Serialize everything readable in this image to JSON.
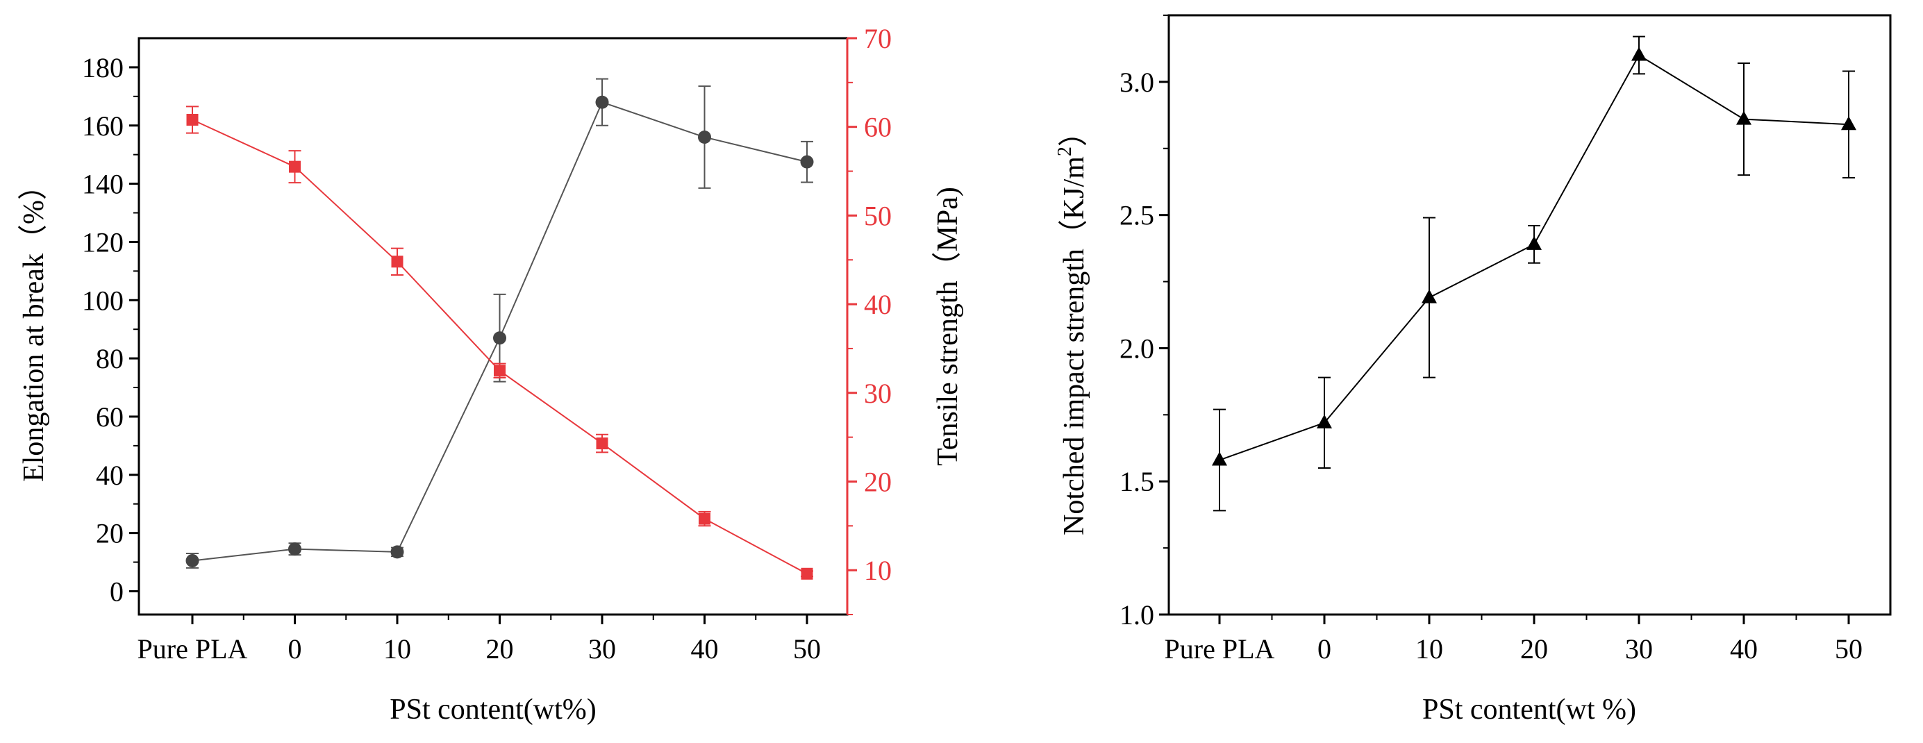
{
  "chart_data": [
    {
      "type": "line",
      "categories": [
        "Pure PLA",
        "0",
        "10",
        "20",
        "30",
        "40",
        "50"
      ],
      "xlabel": "PSt content(wt%)",
      "ylabel_left": "Elongation at break（%）",
      "ylabel_right": "Tensile strength（MPa)",
      "ylim_left": [
        -8,
        190
      ],
      "ylim_right": [
        5,
        70
      ],
      "yticks_left": [
        "0",
        "20",
        "40",
        "60",
        "80",
        "100",
        "120",
        "140",
        "160",
        "180"
      ],
      "yticks_right": [
        "10",
        "20",
        "30",
        "40",
        "50",
        "60",
        "70"
      ],
      "series": [
        {
          "name": "Elongation at break",
          "axis": "left",
          "color": "#555555",
          "marker": "circle",
          "values": [
            10.5,
            14.5,
            13.5,
            87,
            168,
            156,
            147.5
          ],
          "errors": [
            2.5,
            2,
            1.5,
            15,
            8,
            17.5,
            7
          ]
        },
        {
          "name": "Tensile strength",
          "axis": "right",
          "color": "#e8383d",
          "marker": "square",
          "values": [
            60.8,
            55.5,
            44.8,
            32.5,
            24.3,
            15.8,
            9.6
          ],
          "errors": [
            1.5,
            1.8,
            1.5,
            0.8,
            1.0,
            0.8,
            0.3
          ]
        }
      ]
    },
    {
      "type": "line",
      "categories": [
        "Pure PLA",
        "0",
        "10",
        "20",
        "30",
        "40",
        "50"
      ],
      "xlabel": "PSt content(wt %)",
      "ylabel_main": "Notched impact strength（KJ/m",
      "ylabel_sup": "2",
      "ylabel_tail": "）",
      "ylim": [
        1.0,
        3.25
      ],
      "yticks": [
        "1.0",
        "1.5",
        "2.0",
        "2.5",
        "3.0"
      ],
      "series": [
        {
          "name": "Notched impact strength",
          "color": "#000000",
          "marker": "triangle",
          "values": [
            1.58,
            1.72,
            2.19,
            2.39,
            3.1,
            2.86,
            2.84
          ],
          "errors": [
            0.19,
            0.17,
            0.3,
            0.07,
            0.07,
            0.21,
            0.2
          ]
        }
      ]
    }
  ]
}
